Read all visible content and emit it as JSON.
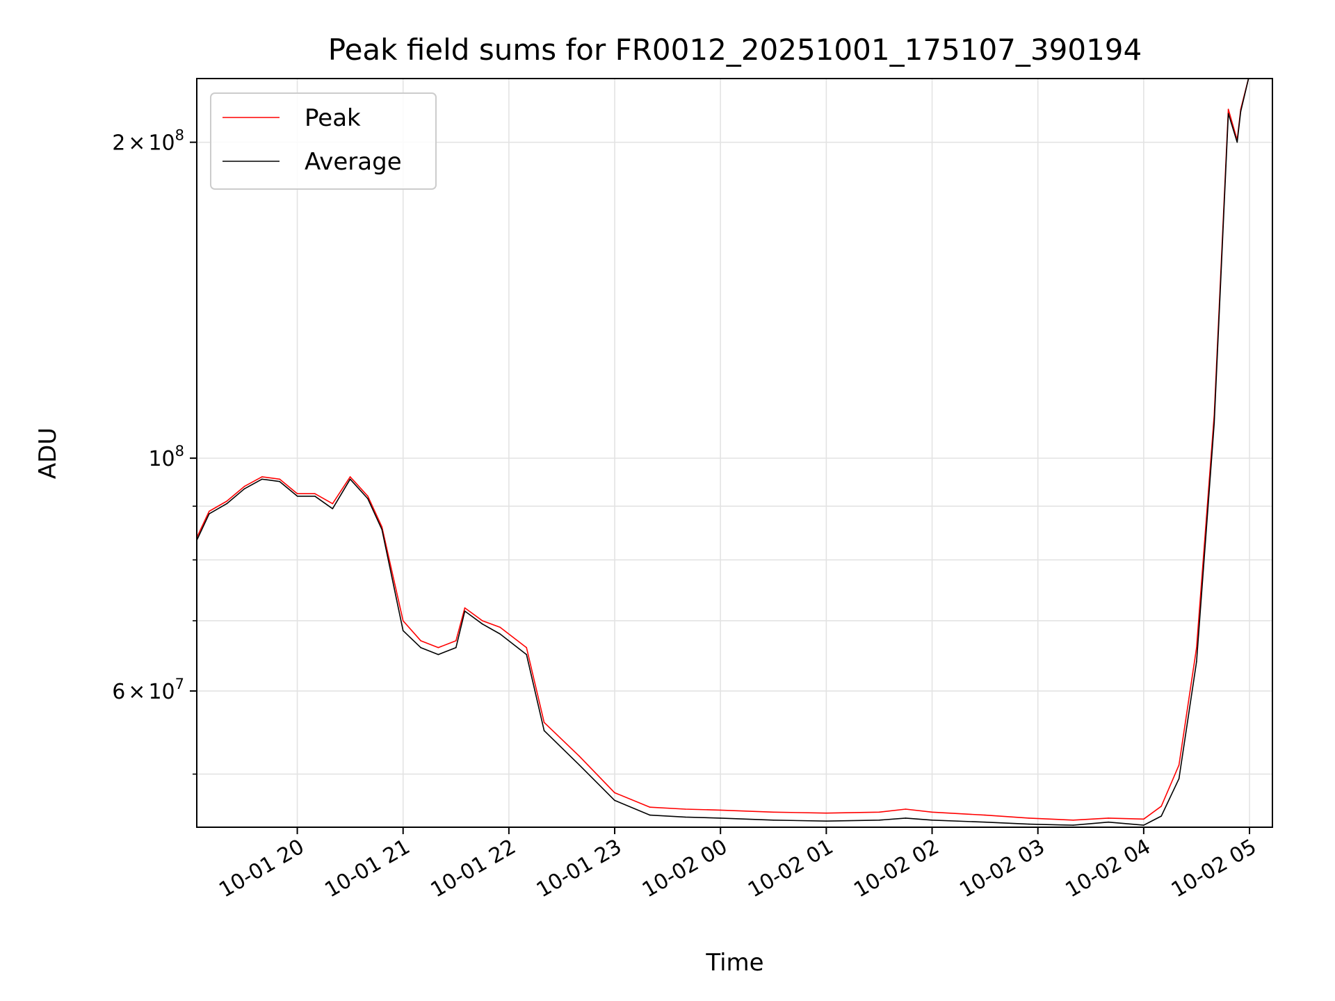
{
  "chart_data": {
    "type": "line",
    "title": "Peak field sums for FR0012_20251001_175107_390194",
    "xlabel": "Time",
    "ylabel": "ADU",
    "y_scale": "log",
    "ylim": [
      44500000,
      230000000
    ],
    "xlim": [
      "2025-10-01 19:03",
      "2025-10-02 05:13"
    ],
    "grid": true,
    "legend_position": "top-left",
    "x_ticks": [
      {
        "value": "2025-10-01 20:00",
        "label": "10-01 20"
      },
      {
        "value": "2025-10-01 21:00",
        "label": "10-01 21"
      },
      {
        "value": "2025-10-01 22:00",
        "label": "10-01 22"
      },
      {
        "value": "2025-10-01 23:00",
        "label": "10-01 23"
      },
      {
        "value": "2025-10-02 00:00",
        "label": "10-02 00"
      },
      {
        "value": "2025-10-02 01:00",
        "label": "10-02 01"
      },
      {
        "value": "2025-10-02 02:00",
        "label": "10-02 02"
      },
      {
        "value": "2025-10-02 03:00",
        "label": "10-02 03"
      },
      {
        "value": "2025-10-02 04:00",
        "label": "10-02 04"
      },
      {
        "value": "2025-10-02 05:00",
        "label": "10-02 05"
      }
    ],
    "y_ticks_major": [
      {
        "value": 60000000,
        "mantissa": "6",
        "exponent": "7"
      },
      {
        "value": 100000000,
        "mantissa": "",
        "exponent": "8"
      },
      {
        "value": 200000000,
        "mantissa": "2",
        "exponent": "8"
      }
    ],
    "y_ticks_minor": [
      50000000,
      70000000,
      80000000,
      90000000,
      300000000
    ],
    "times_symbol": "×",
    "tick_base": "10",
    "series": [
      {
        "name": "Peak",
        "color": "#ff0000",
        "x": [
          "2025-10-01 19:03",
          "2025-10-01 19:10",
          "2025-10-01 19:20",
          "2025-10-01 19:30",
          "2025-10-01 19:40",
          "2025-10-01 19:50",
          "2025-10-01 20:00",
          "2025-10-01 20:10",
          "2025-10-01 20:20",
          "2025-10-01 20:30",
          "2025-10-01 20:40",
          "2025-10-01 20:48",
          "2025-10-01 21:00",
          "2025-10-01 21:10",
          "2025-10-01 21:20",
          "2025-10-01 21:30",
          "2025-10-01 21:35",
          "2025-10-01 21:45",
          "2025-10-01 21:55",
          "2025-10-01 22:10",
          "2025-10-01 22:20",
          "2025-10-01 22:40",
          "2025-10-01 23:00",
          "2025-10-01 23:20",
          "2025-10-01 23:40",
          "2025-10-02 00:00",
          "2025-10-02 00:30",
          "2025-10-02 01:00",
          "2025-10-02 01:30",
          "2025-10-02 01:45",
          "2025-10-02 02:00",
          "2025-10-02 02:30",
          "2025-10-02 02:55",
          "2025-10-02 03:20",
          "2025-10-02 03:40",
          "2025-10-02 04:00",
          "2025-10-02 04:10",
          "2025-10-02 04:20",
          "2025-10-02 04:30",
          "2025-10-02 04:40",
          "2025-10-02 04:48",
          "2025-10-02 04:53",
          "2025-10-02 04:55",
          "2025-10-02 05:00"
        ],
        "y": [
          84000000,
          89000000,
          91000000,
          94000000,
          96000000,
          95500000,
          92500000,
          92500000,
          90500000,
          96000000,
          92000000,
          86000000,
          70000000,
          67000000,
          66000000,
          67000000,
          72000000,
          70000000,
          69000000,
          66000000,
          56000000,
          52000000,
          48000000,
          46500000,
          46300000,
          46200000,
          46000000,
          45900000,
          46000000,
          46300000,
          46000000,
          45700000,
          45400000,
          45200000,
          45400000,
          45300000,
          46600000,
          51000000,
          66000000,
          110000000,
          215000000,
          201000000,
          215000000,
          232000000
        ]
      },
      {
        "name": "Average",
        "color": "#000000",
        "x": [
          "2025-10-01 19:03",
          "2025-10-01 19:10",
          "2025-10-01 19:20",
          "2025-10-01 19:30",
          "2025-10-01 19:40",
          "2025-10-01 19:50",
          "2025-10-01 20:00",
          "2025-10-01 20:10",
          "2025-10-01 20:20",
          "2025-10-01 20:30",
          "2025-10-01 20:40",
          "2025-10-01 20:48",
          "2025-10-01 21:00",
          "2025-10-01 21:10",
          "2025-10-01 21:20",
          "2025-10-01 21:30",
          "2025-10-01 21:35",
          "2025-10-01 21:45",
          "2025-10-01 21:55",
          "2025-10-01 22:10",
          "2025-10-01 22:20",
          "2025-10-01 22:40",
          "2025-10-01 23:00",
          "2025-10-01 23:20",
          "2025-10-01 23:40",
          "2025-10-02 00:00",
          "2025-10-02 00:30",
          "2025-10-02 01:00",
          "2025-10-02 01:30",
          "2025-10-02 01:45",
          "2025-10-02 02:00",
          "2025-10-02 02:30",
          "2025-10-02 02:55",
          "2025-10-02 03:20",
          "2025-10-02 03:40",
          "2025-10-02 04:00",
          "2025-10-02 04:10",
          "2025-10-02 04:20",
          "2025-10-02 04:30",
          "2025-10-02 04:40",
          "2025-10-02 04:48",
          "2025-10-02 04:53",
          "2025-10-02 04:55",
          "2025-10-02 05:00"
        ],
        "y": [
          83500000,
          88500000,
          90500000,
          93500000,
          95500000,
          95000000,
          92000000,
          92000000,
          89500000,
          95500000,
          91500000,
          85500000,
          68500000,
          66000000,
          65000000,
          66000000,
          71500000,
          69500000,
          68000000,
          65000000,
          55000000,
          51000000,
          47200000,
          45700000,
          45500000,
          45400000,
          45200000,
          45100000,
          45200000,
          45400000,
          45200000,
          45000000,
          44800000,
          44700000,
          45000000,
          44700000,
          45600000,
          49500000,
          64000000,
          108000000,
          213000000,
          200000000,
          214000000,
          232000000
        ]
      }
    ]
  }
}
